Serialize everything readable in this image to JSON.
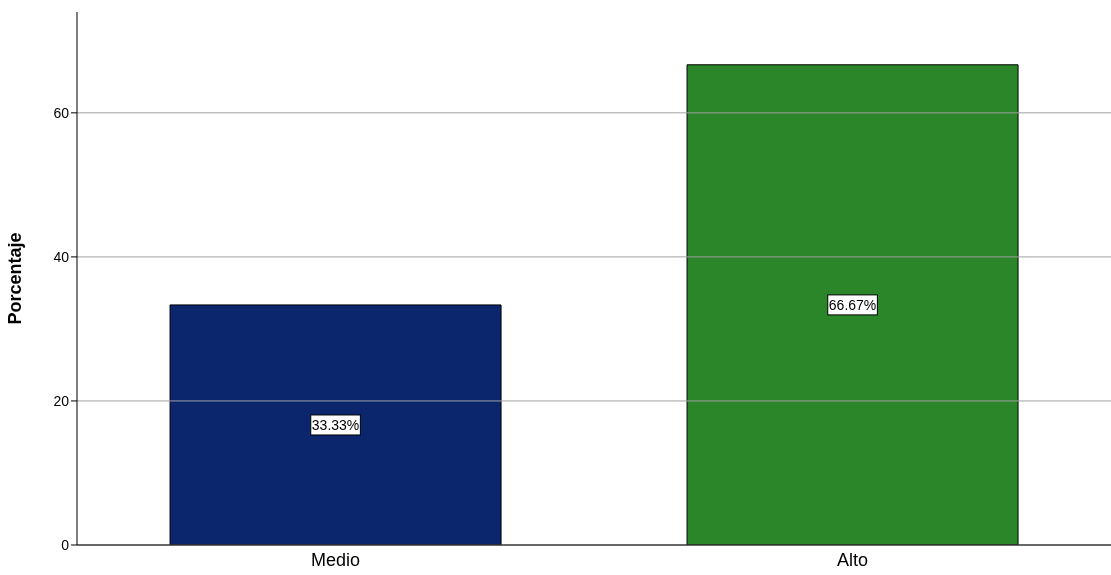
{
  "chart_data": {
    "type": "bar",
    "ylabel": "Porcentaje",
    "categories": [
      "Medio",
      "Alto"
    ],
    "values": [
      33.33,
      66.67
    ],
    "colors": [
      "#0b266d",
      "#2b8629"
    ],
    "value_labels": [
      "33.33%",
      "66.67%"
    ],
    "ylim": [
      0,
      74
    ],
    "yticks": [
      0,
      20,
      40,
      60
    ],
    "grid": "y"
  }
}
